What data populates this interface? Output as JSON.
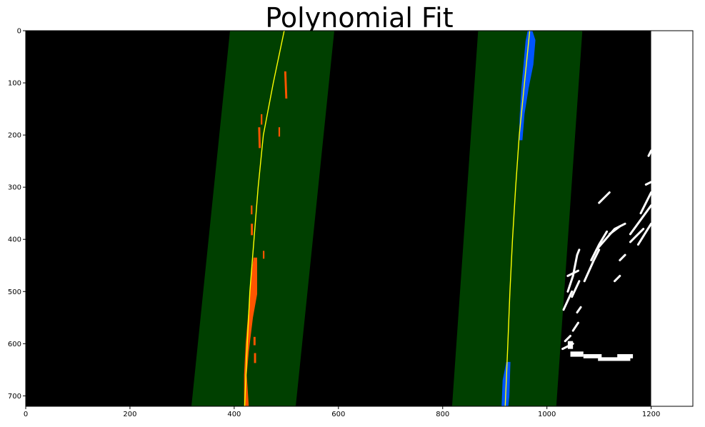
{
  "chart_data": {
    "type": "image",
    "title": "Polynomial Fit",
    "xlabel": "",
    "ylabel": "",
    "xlim": [
      0,
      1280
    ],
    "ylim": [
      720,
      0
    ],
    "image_extent_x": [
      0,
      1200
    ],
    "xticks": [
      0,
      200,
      400,
      600,
      800,
      1000,
      1200
    ],
    "yticks": [
      0,
      100,
      200,
      300,
      400,
      500,
      600,
      700
    ],
    "grid": false,
    "colors": {
      "background": "#000000",
      "search_window": "#004000",
      "left_lane_pixels": "#ff5500",
      "right_lane_pixels": "#0055ff",
      "fit_line": "#ffff00",
      "other_pixels": "#ffffff"
    },
    "search_windows": [
      {
        "name": "left-window",
        "x_top": [
          392,
          592
        ],
        "x_bottom": [
          318,
          518
        ]
      },
      {
        "name": "right-window",
        "x_top": [
          868,
          1068
        ],
        "x_bottom": [
          818,
          1018
        ]
      }
    ],
    "fit_lines": [
      {
        "name": "left-fit",
        "points": [
          [
            496,
            0
          ],
          [
            475,
            100
          ],
          [
            456,
            200
          ],
          [
            446,
            300
          ],
          [
            438,
            400
          ],
          [
            430,
            500
          ],
          [
            425,
            600
          ],
          [
            420,
            720
          ]
        ]
      },
      {
        "name": "right-fit",
        "points": [
          [
            967,
            0
          ],
          [
            957,
            100
          ],
          [
            947,
            200
          ],
          [
            940,
            300
          ],
          [
            934,
            400
          ],
          [
            929,
            500
          ],
          [
            925,
            600
          ],
          [
            920,
            720
          ]
        ]
      }
    ],
    "lane_pixel_blobs": [
      {
        "name": "left-blob-1",
        "points": [
          [
            496,
            78
          ],
          [
            500,
            78
          ],
          [
            502,
            130
          ],
          [
            498,
            130
          ]
        ]
      },
      {
        "name": "left-blob-2",
        "points": [
          [
            451,
            160
          ],
          [
            454,
            160
          ],
          [
            454,
            180
          ],
          [
            451,
            180
          ]
        ]
      },
      {
        "name": "left-blob-3",
        "points": [
          [
            446,
            185
          ],
          [
            450,
            185
          ],
          [
            451,
            225
          ],
          [
            447,
            225
          ]
        ]
      },
      {
        "name": "left-blob-4",
        "points": [
          [
            485,
            185
          ],
          [
            488,
            185
          ],
          [
            488,
            203
          ],
          [
            485,
            203
          ]
        ]
      },
      {
        "name": "left-blob-5",
        "points": [
          [
            432,
            335
          ],
          [
            435,
            335
          ],
          [
            435,
            352
          ],
          [
            432,
            352
          ]
        ]
      },
      {
        "name": "left-blob-6",
        "points": [
          [
            432,
            370
          ],
          [
            436,
            370
          ],
          [
            436,
            392
          ],
          [
            432,
            392
          ]
        ]
      },
      {
        "name": "left-blob-7",
        "points": [
          [
            455,
            422
          ],
          [
            458,
            422
          ],
          [
            458,
            437
          ],
          [
            455,
            437
          ]
        ]
      },
      {
        "name": "left-main",
        "points": [
          [
            437,
            435
          ],
          [
            444,
            435
          ],
          [
            444,
            505
          ],
          [
            436,
            550
          ],
          [
            428,
            615
          ],
          [
            424,
            660
          ],
          [
            428,
            720
          ],
          [
            419,
            720
          ],
          [
            419,
            660
          ],
          [
            422,
            600
          ],
          [
            427,
            540
          ],
          [
            432,
            475
          ]
        ]
      },
      {
        "name": "left-blob-8",
        "points": [
          [
            437,
            587
          ],
          [
            441,
            587
          ],
          [
            441,
            603
          ],
          [
            437,
            603
          ]
        ]
      },
      {
        "name": "left-blob-9",
        "points": [
          [
            438,
            618
          ],
          [
            442,
            618
          ],
          [
            442,
            637
          ],
          [
            438,
            637
          ]
        ]
      },
      {
        "name": "right-upper",
        "points": [
          [
            963,
            0
          ],
          [
            972,
            0
          ],
          [
            978,
            18
          ],
          [
            974,
            65
          ],
          [
            965,
            110
          ],
          [
            957,
            160
          ],
          [
            953,
            210
          ],
          [
            946,
            210
          ],
          [
            948,
            160
          ],
          [
            951,
            110
          ],
          [
            955,
            65
          ],
          [
            959,
            20
          ]
        ]
      },
      {
        "name": "right-lower",
        "points": [
          [
            922,
            635
          ],
          [
            930,
            635
          ],
          [
            928,
            700
          ],
          [
            926,
            720
          ],
          [
            913,
            720
          ],
          [
            915,
            670
          ]
        ]
      }
    ],
    "other_pixel_strokes": [
      [
        [
          1040,
          500
        ],
        [
          1050,
          470
        ],
        [
          1058,
          430
        ],
        [
          1062,
          420
        ]
      ],
      [
        [
          1032,
          535
        ],
        [
          1048,
          500
        ]
      ],
      [
        [
          1048,
          510
        ],
        [
          1062,
          480
        ]
      ],
      [
        [
          1072,
          480
        ],
        [
          1090,
          440
        ],
        [
          1100,
          420
        ]
      ],
      [
        [
          1085,
          440
        ],
        [
          1100,
          410
        ],
        [
          1115,
          385
        ]
      ],
      [
        [
          1040,
          470
        ],
        [
          1060,
          460
        ]
      ],
      [
        [
          1095,
          420
        ],
        [
          1130,
          380
        ],
        [
          1150,
          370
        ]
      ],
      [
        [
          1100,
          330
        ],
        [
          1120,
          310
        ]
      ],
      [
        [
          1160,
          390
        ],
        [
          1200,
          335
        ]
      ],
      [
        [
          1160,
          405
        ],
        [
          1185,
          380
        ]
      ],
      [
        [
          1180,
          350
        ],
        [
          1200,
          310
        ]
      ],
      [
        [
          1190,
          295
        ],
        [
          1200,
          290
        ]
      ],
      [
        [
          1175,
          410
        ],
        [
          1200,
          370
        ]
      ],
      [
        [
          1120,
          390
        ],
        [
          1140,
          375
        ]
      ],
      [
        [
          1140,
          440
        ],
        [
          1150,
          430
        ]
      ],
      [
        [
          1130,
          480
        ],
        [
          1140,
          470
        ]
      ],
      [
        [
          1050,
          575
        ],
        [
          1060,
          560
        ]
      ],
      [
        [
          1035,
          595
        ],
        [
          1045,
          585
        ]
      ],
      [
        [
          1058,
          540
        ],
        [
          1065,
          530
        ]
      ],
      [
        [
          1030,
          610
        ],
        [
          1050,
          600
        ]
      ],
      [
        [
          1195,
          240
        ],
        [
          1200,
          230
        ]
      ]
    ],
    "other_pixel_blocks": [
      {
        "x": [
          1040,
          1050
        ],
        "y": [
          595,
          610
        ]
      },
      {
        "x": [
          1045,
          1070
        ],
        "y": [
          615,
          625
        ]
      },
      {
        "x": [
          1070,
          1105
        ],
        "y": [
          620,
          628
        ]
      },
      {
        "x": [
          1098,
          1160
        ],
        "y": [
          626,
          633
        ]
      },
      {
        "x": [
          1135,
          1165
        ],
        "y": [
          620,
          628
        ]
      }
    ]
  }
}
